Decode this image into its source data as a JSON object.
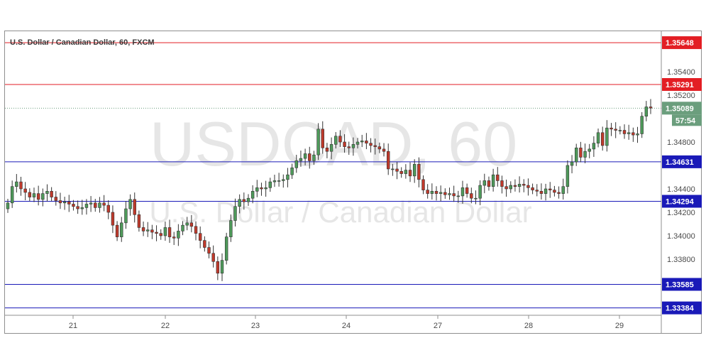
{
  "chart_data": {
    "type": "candlestick",
    "title": "U.S. Dollar / Canadian Dollar, 60, FXCM",
    "watermark": {
      "symbol": "USDCAD, 60",
      "description": "U.S. Dollar / Canadian Dollar"
    },
    "x_ticks": [
      "21",
      "22",
      "23",
      "24",
      "27",
      "28",
      "29"
    ],
    "y_ticks": [
      "1.35400",
      "1.35200",
      "1.34800",
      "1.34400",
      "1.34200",
      "1.34000",
      "1.33800"
    ],
    "ylim": [
      1.332,
      1.358
    ],
    "last_price": {
      "label": "1.35089",
      "value": 1.35089,
      "color": "#6b9e7d"
    },
    "countdown": "57:54",
    "levels": [
      {
        "label": "1.35648",
        "value": 1.35648,
        "color": "#e31e24"
      },
      {
        "label": "1.35291",
        "value": 1.35291,
        "color": "#e31e24"
      },
      {
        "label": "1.34631",
        "value": 1.34631,
        "color": "#1a1ab8"
      },
      {
        "label": "1.34294",
        "value": 1.34294,
        "color": "#1a1ab8"
      },
      {
        "label": "1.33585",
        "value": 1.33585,
        "color": "#1a1ab8"
      },
      {
        "label": "1.33384",
        "value": 1.33384,
        "color": "#1a1ab8"
      }
    ],
    "up_color": "#4e9a5a",
    "down_color": "#c0392b",
    "closes": [
      1.3428,
      1.3442,
      1.3446,
      1.344,
      1.3437,
      1.3433,
      1.3436,
      1.3431,
      1.3436,
      1.3438,
      1.3433,
      1.343,
      1.3428,
      1.3429,
      1.3427,
      1.3425,
      1.3423,
      1.3424,
      1.3427,
      1.3428,
      1.3424,
      1.3428,
      1.3426,
      1.342,
      1.3409,
      1.3399,
      1.3411,
      1.3423,
      1.3431,
      1.3418,
      1.3407,
      1.3404,
      1.3405,
      1.3403,
      1.3402,
      1.34,
      1.3407,
      1.3399,
      1.3398,
      1.3404,
      1.3409,
      1.3411,
      1.3408,
      1.3402,
      1.3396,
      1.339,
      1.3385,
      1.3378,
      1.3368,
      1.3379,
      1.3399,
      1.3413,
      1.3425,
      1.3431,
      1.3429,
      1.3432,
      1.3438,
      1.3441,
      1.344,
      1.3441,
      1.3446,
      1.3447,
      1.3447,
      1.3448,
      1.3452,
      1.3458,
      1.3464,
      1.3466,
      1.347,
      1.3464,
      1.3469,
      1.3491,
      1.3475,
      1.3472,
      1.3478,
      1.3485,
      1.348,
      1.3476,
      1.3475,
      1.3478,
      1.348,
      1.3481,
      1.3479,
      1.3477,
      1.3476,
      1.3474,
      1.3472,
      1.3457,
      1.3457,
      1.3455,
      1.3453,
      1.3456,
      1.3451,
      1.3461,
      1.3448,
      1.3439,
      1.3436,
      1.3438,
      1.3436,
      1.3437,
      1.3435,
      1.3436,
      1.3434,
      1.3434,
      1.3441,
      1.3436,
      1.3432,
      1.3432,
      1.3443,
      1.3447,
      1.3442,
      1.3452,
      1.3447,
      1.3442,
      1.344,
      1.3443,
      1.3442,
      1.3444,
      1.3443,
      1.3441,
      1.3439,
      1.3438,
      1.3436,
      1.344,
      1.3439,
      1.3437,
      1.3436,
      1.3442,
      1.346,
      1.3463,
      1.3475,
      1.3467,
      1.3472,
      1.3474,
      1.3479,
      1.3488,
      1.3477,
      1.3492,
      1.3491,
      1.349,
      1.349,
      1.3487,
      1.3488,
      1.3486,
      1.3487,
      1.3502,
      1.351,
      1.3509
    ]
  }
}
